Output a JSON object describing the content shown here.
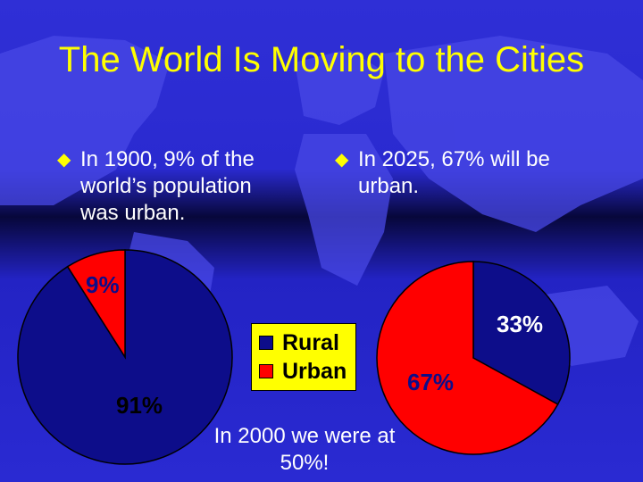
{
  "slide": {
    "title": "The World Is Moving to the Cities",
    "bullets": [
      {
        "text": "In 1900, 9% of the world’s population was urban."
      },
      {
        "text": "In 2025, 67% will be urban."
      }
    ],
    "note": "In 2000 we were at 50%!",
    "bullet_icon": "diamond-bullet-icon"
  },
  "colors": {
    "rural": "#0d0d8a",
    "urban": "#ff0000",
    "title": "#ffff00",
    "legend_bg": "#ffff00"
  },
  "chart_data": [
    {
      "type": "pie",
      "year": "1900",
      "categories": [
        "Rural",
        "Urban"
      ],
      "values": [
        91,
        9
      ],
      "data_labels": [
        "91%",
        "9%"
      ]
    },
    {
      "type": "pie",
      "year": "2025",
      "categories": [
        "Rural",
        "Urban"
      ],
      "values": [
        33,
        67
      ],
      "data_labels": [
        "33%",
        "67%"
      ]
    }
  ],
  "legend": [
    {
      "label": "Rural",
      "color": "#0d0d8a"
    },
    {
      "label": "Urban",
      "color": "#ff0000"
    }
  ]
}
